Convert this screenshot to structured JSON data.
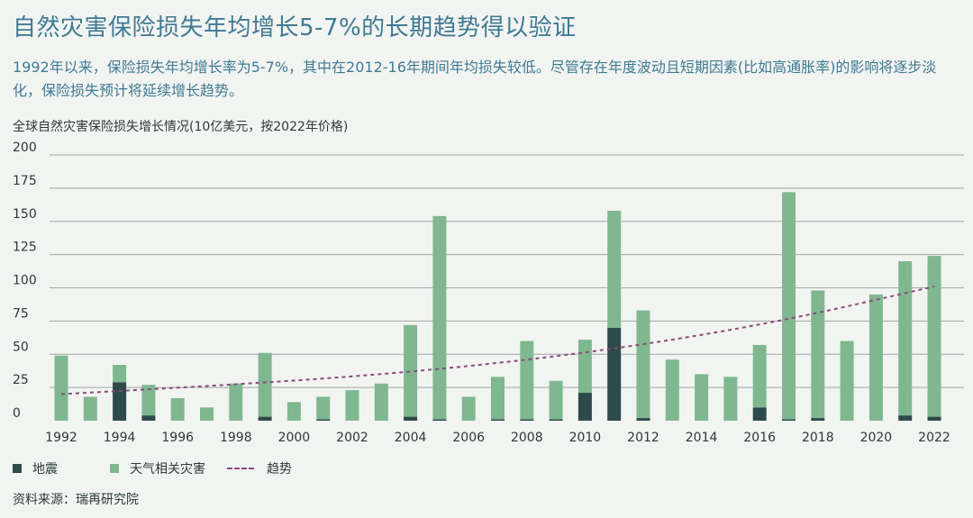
{
  "page": {
    "title": "自然灾害保险损失年均增长5-7%的长期趋势得以验证",
    "subtitle": "1992年以来，保险损失年均增长率为5-7%，其中在2012-16年期间年均损失较低。尽管存在年度波动且短期因素(比如高通胀率)的影响将逐步淡化，保险损失预计将延续增长趋势。",
    "source": "资料来源：瑞再研究院"
  },
  "chart_data": {
    "type": "bar",
    "stacked": true,
    "title": "全球自然灾害保险损失增长情况(10亿美元，按2022年价格)",
    "xlabel": "",
    "ylabel": "",
    "ylim": [
      0,
      200
    ],
    "yticks": [
      0,
      25,
      50,
      75,
      100,
      125,
      150,
      175,
      200
    ],
    "grid": true,
    "legend_position": "bottom-left",
    "categories": [
      1992,
      1993,
      1994,
      1995,
      1996,
      1997,
      1998,
      1999,
      2000,
      2001,
      2002,
      2003,
      2004,
      2005,
      2006,
      2007,
      2008,
      2009,
      2010,
      2011,
      2012,
      2013,
      2014,
      2015,
      2016,
      2017,
      2018,
      2019,
      2020,
      2021,
      2022
    ],
    "xtick_labels": [
      "1992",
      "1994",
      "1996",
      "1998",
      "2000",
      "2002",
      "2004",
      "2006",
      "2008",
      "2010",
      "2012",
      "2014",
      "2016",
      "2018",
      "2020",
      "2022"
    ],
    "series": [
      {
        "name": "地震",
        "color": "#2e4a4a",
        "values": [
          0,
          0,
          29,
          4,
          0,
          0,
          0,
          3,
          0,
          1,
          0,
          0,
          3,
          1,
          0,
          1,
          1,
          1,
          21,
          70,
          2,
          0,
          0,
          0,
          10,
          1,
          2,
          0,
          0,
          4,
          3
        ]
      },
      {
        "name": "天气相关灾害",
        "color": "#7fb890",
        "values": [
          49,
          18,
          13,
          23,
          17,
          10,
          28,
          48,
          14,
          17,
          23,
          28,
          69,
          153,
          18,
          32,
          59,
          29,
          40,
          88,
          81,
          46,
          35,
          33,
          47,
          171,
          96,
          60,
          95,
          116,
          121
        ]
      }
    ],
    "trend": {
      "name": "趋势",
      "color": "#8b4b78",
      "style": "dashed",
      "x": [
        1992,
        1997,
        2002,
        2007,
        2012,
        2017,
        2022
      ],
      "y": [
        20,
        26,
        33,
        43,
        57,
        76,
        101
      ]
    }
  }
}
